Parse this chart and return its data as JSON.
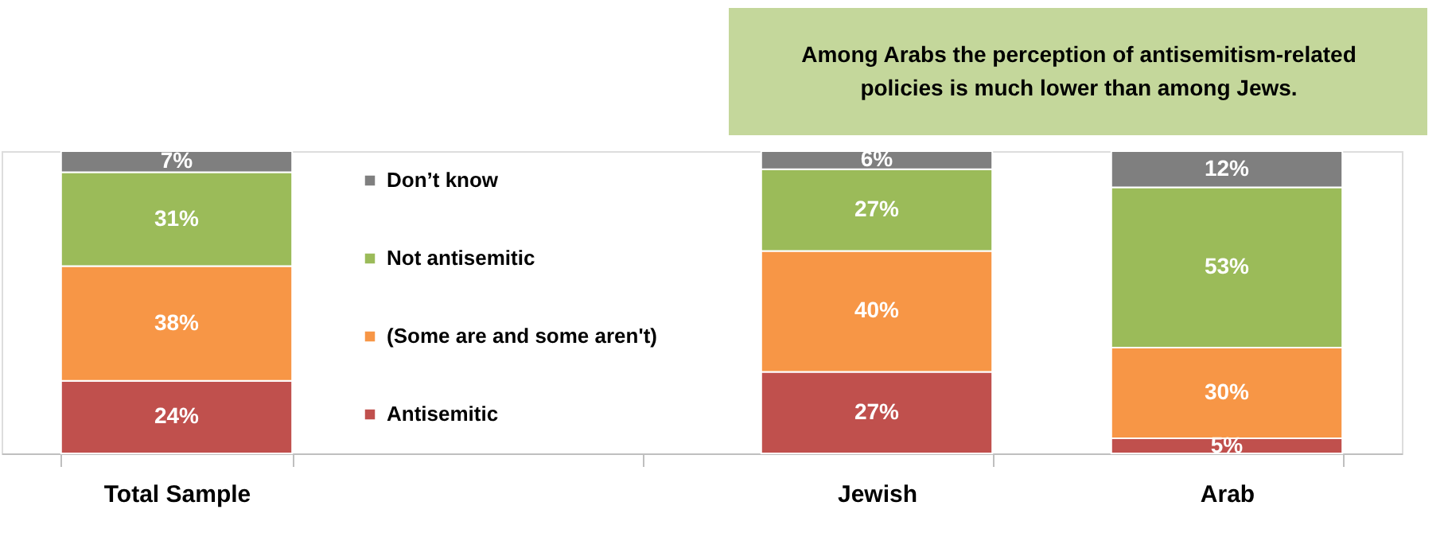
{
  "chart_data": {
    "type": "bar",
    "stacked": true,
    "categories": [
      "Total Sample",
      null,
      "Jewish",
      "Arab"
    ],
    "series": [
      {
        "name": "Antisemitic",
        "color": "#c0504d",
        "values": [
          24,
          null,
          27,
          5
        ],
        "value_labels": [
          "24%",
          null,
          "27%",
          "5%"
        ]
      },
      {
        "name": "(Some are and some aren't)",
        "color": "#f79646",
        "values": [
          38,
          null,
          40,
          30
        ],
        "value_labels": [
          "38%",
          null,
          "40%",
          "30%"
        ]
      },
      {
        "name": "Not antisemitic",
        "color": "#9bbb59",
        "values": [
          31,
          null,
          27,
          53
        ],
        "value_labels": [
          "31%",
          null,
          "27%",
          "53%"
        ]
      },
      {
        "name": "Don’t know",
        "color": "#7f7f7f",
        "values": [
          7,
          null,
          6,
          12
        ],
        "value_labels": [
          "7%",
          null,
          "6%",
          "12%"
        ]
      }
    ],
    "tick_labels": "x",
    "legend": "center",
    "grid": false,
    "annotations": [
      "Among Arabs the perception of antisemitism-related policies is much lower than among Jews."
    ]
  }
}
